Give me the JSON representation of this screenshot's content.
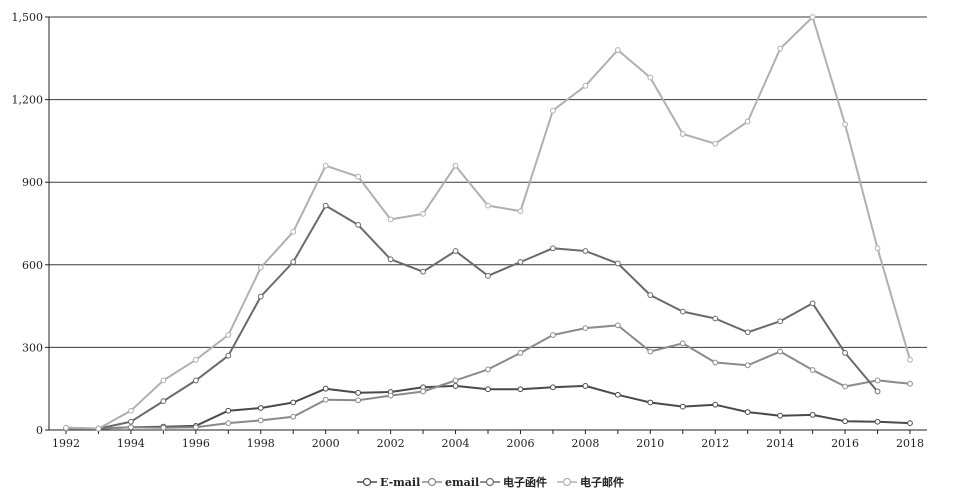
{
  "chart_data": {
    "type": "line",
    "x": [
      1992,
      1993,
      1994,
      1995,
      1996,
      1997,
      1998,
      1999,
      2000,
      2001,
      2002,
      2003,
      2004,
      2005,
      2006,
      2007,
      2008,
      2009,
      2010,
      2011,
      2012,
      2013,
      2014,
      2015,
      2016,
      2017,
      2018
    ],
    "x_ticks": [
      "1992",
      "1994",
      "1996",
      "1998",
      "2000",
      "2002",
      "2004",
      "2006",
      "2008",
      "2010",
      "2012",
      "2014",
      "2016",
      "2018"
    ],
    "y_ticks": [
      "0",
      "300",
      "600",
      "900",
      "1,200",
      "1,500"
    ],
    "ylim": [
      0,
      1500
    ],
    "grid": "horizontal",
    "legend_position": "bottom",
    "series": [
      {
        "name": "E-mail",
        "color": "#4a4a4a",
        "values": [
          5,
          5,
          10,
          12,
          15,
          70,
          80,
          100,
          150,
          135,
          138,
          155,
          160,
          148,
          148,
          155,
          160,
          128,
          100,
          85,
          92,
          65,
          52,
          55,
          32,
          30,
          25
        ]
      },
      {
        "name": "email",
        "color": "#8a8a8a",
        "values": [
          5,
          5,
          10,
          8,
          10,
          25,
          35,
          48,
          110,
          108,
          125,
          140,
          180,
          220,
          280,
          345,
          370,
          380,
          285,
          315,
          245,
          235,
          285,
          218,
          158,
          180,
          168
        ]
      },
      {
        "name": "电子函件",
        "color": "#6a6a6a",
        "values": [
          8,
          5,
          30,
          105,
          180,
          270,
          485,
          610,
          815,
          745,
          620,
          575,
          650,
          560,
          610,
          660,
          650,
          605,
          490,
          430,
          405,
          355,
          395,
          460,
          280,
          140,
          null
        ]
      },
      {
        "name": "电子邮件",
        "color": "#b0b0b0",
        "values": [
          8,
          5,
          70,
          180,
          255,
          345,
          590,
          720,
          960,
          920,
          765,
          785,
          960,
          815,
          795,
          1160,
          1250,
          1380,
          1280,
          1075,
          1040,
          1120,
          1385,
          1500,
          1110,
          660,
          255
        ]
      }
    ]
  }
}
